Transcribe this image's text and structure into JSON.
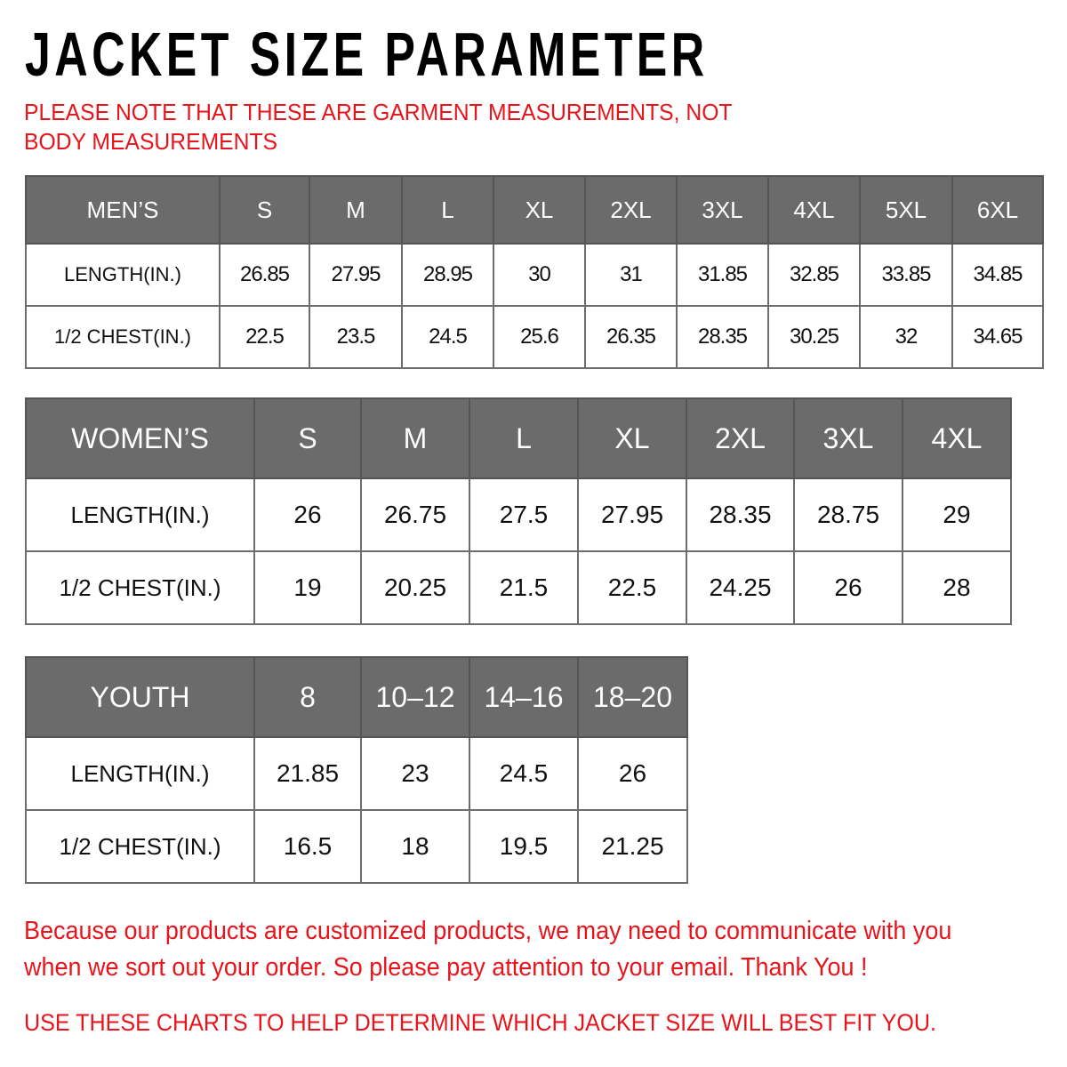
{
  "title": "JACKET SIZE PARAMETER",
  "note": "PLEASE NOTE THAT THESE ARE GARMENT MEASUREMENTS, NOT BODY MEASUREMENTS",
  "colors": {
    "header_bg": "#6b6b6b",
    "accent_red": "#e8141b"
  },
  "mens": {
    "header": [
      "MEN’S",
      "S",
      "M",
      "L",
      "XL",
      "2XL",
      "3XL",
      "4XL",
      "5XL",
      "6XL"
    ],
    "rows": [
      [
        "LENGTH(IN.)",
        "26.85",
        "27.95",
        "28.95",
        "30",
        "31",
        "31.85",
        "32.85",
        "33.85",
        "34.85"
      ],
      [
        "1/2 CHEST(IN.)",
        "22.5",
        "23.5",
        "24.5",
        "25.6",
        "26.35",
        "28.35",
        "30.25",
        "32",
        "34.65"
      ]
    ]
  },
  "womens": {
    "header": [
      "WOMEN’S",
      "S",
      "M",
      "L",
      "XL",
      "2XL",
      "3XL",
      "4XL"
    ],
    "rows": [
      [
        "LENGTH(IN.)",
        "26",
        "26.75",
        "27.5",
        "27.95",
        "28.35",
        "28.75",
        "29"
      ],
      [
        "1/2 CHEST(IN.)",
        "19",
        "20.25",
        "21.5",
        "22.5",
        "24.25",
        "26",
        "28"
      ]
    ]
  },
  "youth": {
    "header": [
      "YOUTH",
      "8",
      "10–12",
      "14–16",
      "18–20"
    ],
    "rows": [
      [
        "LENGTH(IN.)",
        "21.85",
        "23",
        "24.5",
        "26"
      ],
      [
        "1/2 CHEST(IN.)",
        "16.5",
        "18",
        "19.5",
        "21.25"
      ]
    ]
  },
  "footer": {
    "line1": "Because our products are customized products, we may need to communicate with you",
    "line2": "when we sort out your order. So please pay attention to your email. Thank You !",
    "line3": "USE THESE CHARTS TO HELP DETERMINE WHICH JACKET SIZE WILL BEST FIT YOU."
  }
}
